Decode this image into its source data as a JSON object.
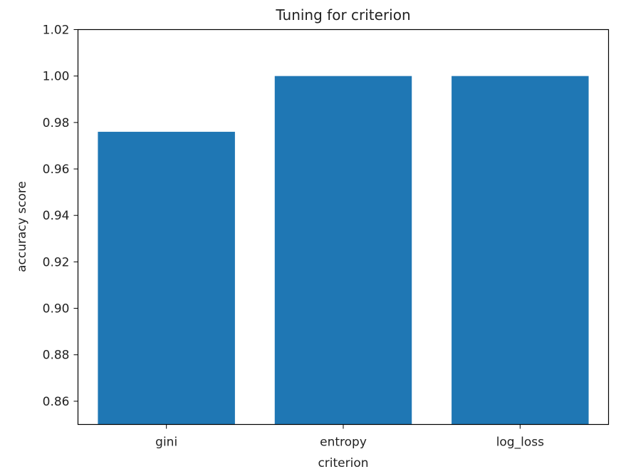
{
  "chart_data": {
    "type": "bar",
    "title": "Tuning for criterion",
    "xlabel": "criterion",
    "ylabel": "accuracy score",
    "categories": [
      "gini",
      "entropy",
      "log_loss"
    ],
    "values": [
      0.976,
      1.0,
      1.0
    ],
    "ylim": [
      0.85,
      1.02
    ],
    "yticks": [
      "0.86",
      "0.88",
      "0.90",
      "0.92",
      "0.94",
      "0.96",
      "0.98",
      "1.00",
      "1.02"
    ],
    "bar_color": "#1f77b4",
    "grid": false,
    "legend": "none"
  }
}
